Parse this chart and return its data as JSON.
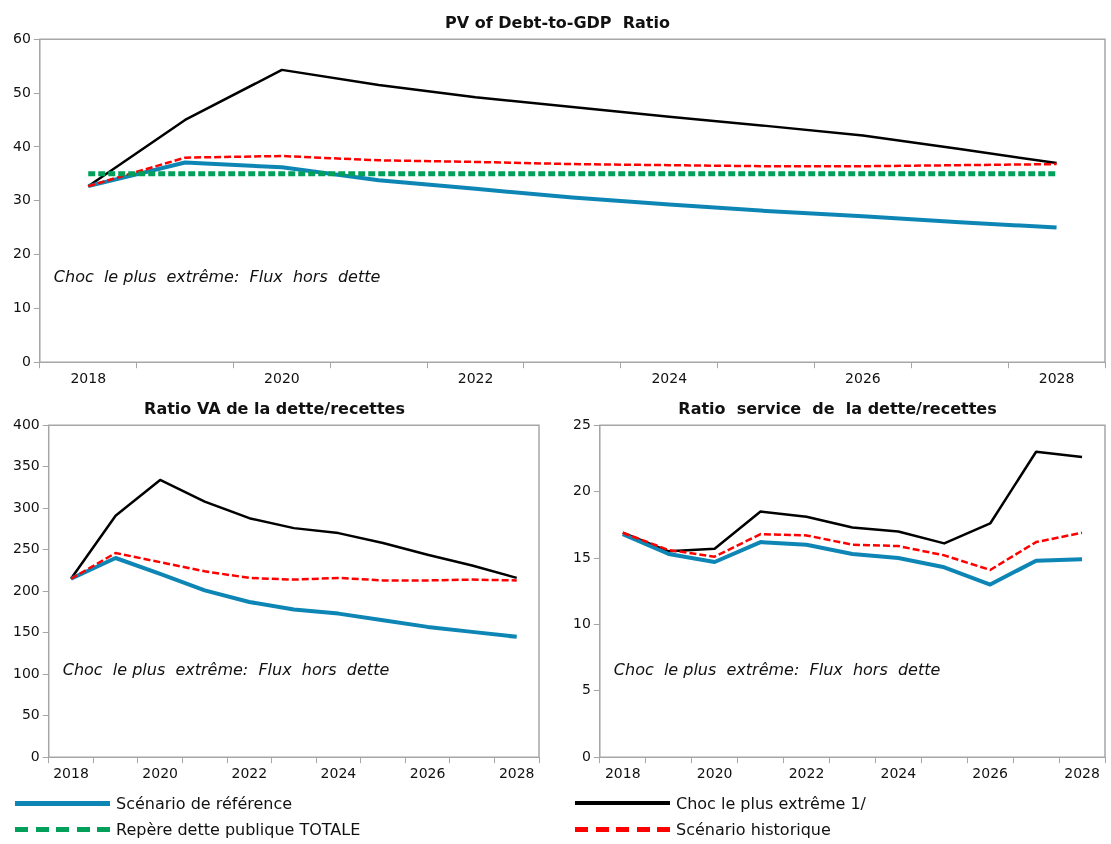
{
  "chart_data": [
    {
      "type": "line",
      "title": "PV of Debt-to-GDP  Ratio",
      "categories": [
        "2018",
        null,
        "2020",
        null,
        "2022",
        null,
        "2024",
        null,
        "2026",
        null,
        "2028"
      ],
      "ylim": [
        0,
        60
      ],
      "yticks": [
        0,
        10,
        20,
        30,
        40,
        50,
        60
      ],
      "grid": false,
      "legend": "bottom",
      "marker": "none",
      "annotations": [
        "Choc  le plus  extrême:  Flux  hors  dette"
      ],
      "series": [
        {
          "name": "Scénario de référence",
          "color": "#0e86b5",
          "line_style": "solid",
          "values": [
            32.7,
            37.1,
            36.2,
            33.8,
            32.2,
            30.6,
            29.3,
            28.1,
            27.1,
            26.0,
            25.0
          ]
        },
        {
          "name": "Choc le plus extrême 1/",
          "color": "#000000",
          "line_style": "solid",
          "values": [
            32.7,
            45.0,
            54.3,
            51.5,
            49.2,
            47.4,
            45.6,
            43.9,
            42.1,
            39.6,
            37.0
          ]
        },
        {
          "name": "Repère dette publique TOTALE",
          "color": "#00a05a",
          "line_style": "dashed",
          "values": [
            35,
            35,
            35,
            35,
            35,
            35,
            35,
            35,
            35,
            35,
            35
          ]
        },
        {
          "name": "Scénario historique",
          "color": "#ff0000",
          "line_style": "dashed",
          "values": [
            32.7,
            38.0,
            38.3,
            37.5,
            37.2,
            36.8,
            36.6,
            36.4,
            36.4,
            36.6,
            36.8
          ]
        }
      ]
    },
    {
      "type": "line",
      "title": "Ratio VA de la dette/recettes",
      "categories": [
        "2018",
        null,
        "2020",
        null,
        "2022",
        null,
        "2024",
        null,
        "2026",
        null,
        "2028"
      ],
      "ylim": [
        0,
        400
      ],
      "yticks": [
        0,
        50,
        100,
        150,
        200,
        250,
        300,
        350,
        400
      ],
      "grid": false,
      "marker": "none",
      "annotations": [
        "Choc  le plus  extrême:  Flux  hors  dette"
      ],
      "series": [
        {
          "color": "#0e86b5",
          "line_style": "solid",
          "values": [
            215,
            240,
            221,
            201,
            187,
            178,
            173,
            165,
            157,
            151,
            145
          ]
        },
        {
          "color": "#000000",
          "line_style": "solid",
          "values": [
            215,
            291,
            334,
            308,
            288,
            276,
            270,
            258,
            244,
            231,
            216
          ]
        },
        {
          "color": "#ff0000",
          "line_style": "dashed",
          "values": [
            215,
            246,
            235,
            224,
            216,
            214,
            216,
            213,
            213,
            214,
            213
          ]
        }
      ]
    },
    {
      "type": "line",
      "title": "Ratio  service  de  la dette/recettes",
      "categories": [
        "2018",
        null,
        "2020",
        null,
        "2022",
        null,
        "2024",
        null,
        "2026",
        null,
        "2028"
      ],
      "ylim": [
        0,
        25
      ],
      "yticks": [
        0,
        5,
        10,
        15,
        20,
        25
      ],
      "grid": false,
      "marker": "none",
      "annotations": [
        "Choc  le plus  extrême:  Flux  hors  dette"
      ],
      "series": [
        {
          "color": "#0e86b5",
          "line_style": "solid",
          "values": [
            16.8,
            15.3,
            14.7,
            16.2,
            16.0,
            15.3,
            15.0,
            14.3,
            13.0,
            14.8,
            14.9
          ]
        },
        {
          "color": "#000000",
          "line_style": "solid",
          "values": [
            16.9,
            15.5,
            15.7,
            18.5,
            18.1,
            17.3,
            17.0,
            16.1,
            17.6,
            23.0,
            22.6
          ]
        },
        {
          "color": "#ff0000",
          "line_style": "dashed",
          "values": [
            16.9,
            15.6,
            15.1,
            16.8,
            16.7,
            16.0,
            15.9,
            15.2,
            14.1,
            16.2,
            16.9
          ]
        }
      ]
    }
  ]
}
